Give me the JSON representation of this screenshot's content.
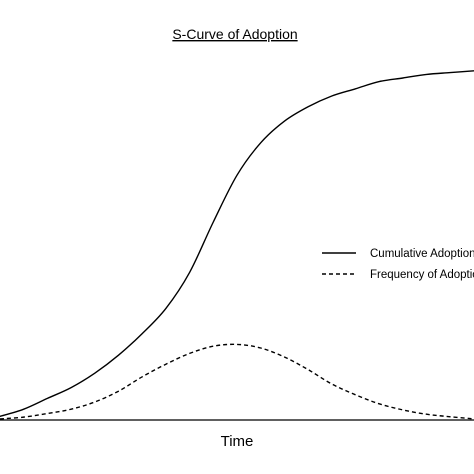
{
  "chart_data": {
    "type": "line",
    "title": "S-Curve of Adoption",
    "xlabel": "Time",
    "ylabel": "",
    "grid": false,
    "legend_position": "right-middle",
    "xlim": [
      0,
      100
    ],
    "ylim": [
      0,
      100
    ],
    "series": [
      {
        "name": "Cumulative Adoption",
        "style": "solid",
        "color": "#000000",
        "x": [
          0,
          5,
          10,
          15,
          20,
          25,
          30,
          35,
          40,
          45,
          50,
          55,
          60,
          65,
          70,
          75,
          80,
          85,
          90,
          95,
          100
        ],
        "values": [
          1,
          3,
          6,
          9,
          13,
          18,
          24,
          31,
          41,
          55,
          68,
          77,
          83,
          87,
          90,
          92,
          94,
          95,
          96,
          96.5,
          97
        ]
      },
      {
        "name": "Frequency of Adoption",
        "style": "dashed",
        "color": "#000000",
        "x": [
          0,
          5,
          10,
          15,
          20,
          25,
          30,
          35,
          40,
          45,
          50,
          55,
          60,
          65,
          70,
          75,
          80,
          85,
          90,
          95,
          100
        ],
        "values": [
          0.3,
          0.8,
          1.8,
          3,
          5,
          8,
          12,
          15.5,
          18.5,
          20.5,
          21,
          20,
          17.5,
          14,
          10,
          7,
          4.5,
          2.8,
          1.6,
          0.9,
          0.3
        ]
      }
    ]
  }
}
